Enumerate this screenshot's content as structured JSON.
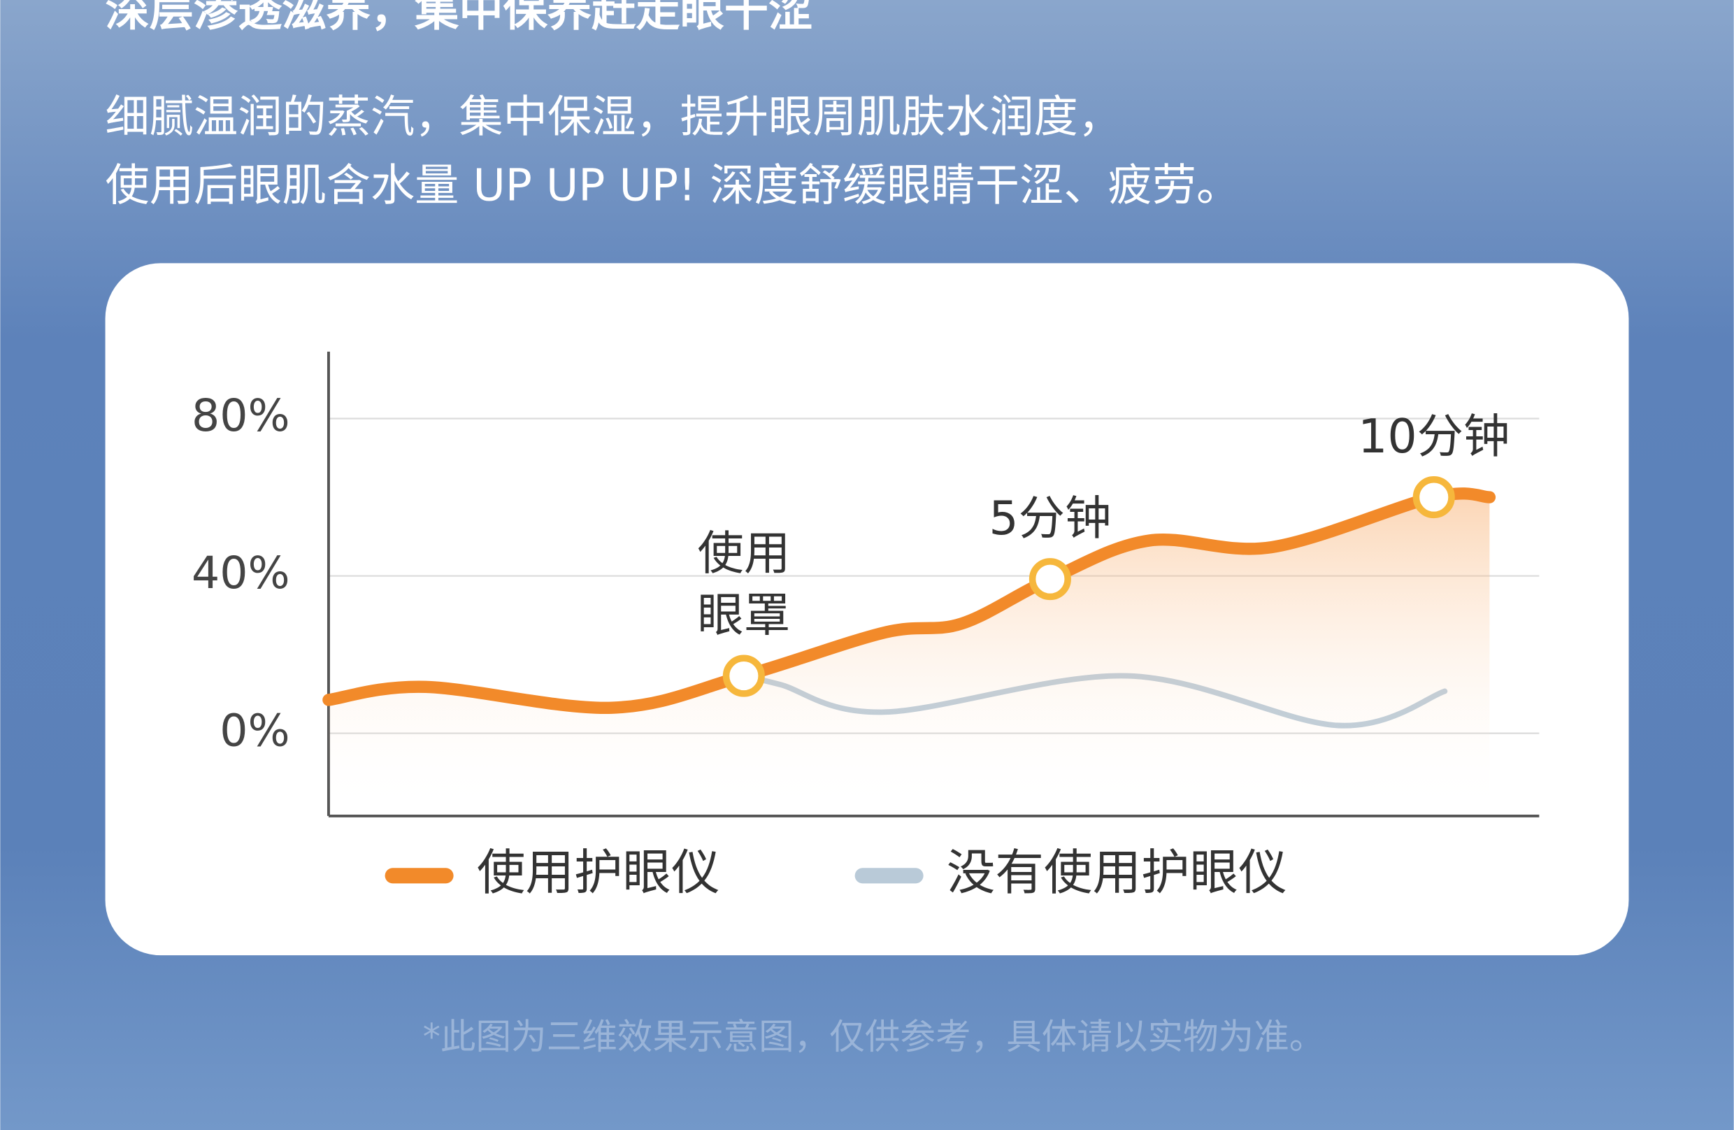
{
  "header": {
    "title": "深层渗透滋养，集中保养赶走眼干涩",
    "lines": [
      "细腻温润的蒸汽，集中保湿，提升眼周肌肤水润度，",
      "使用后眼肌含水量 UP UP UP! 深度舒缓眼睛干涩、疲劳。"
    ]
  },
  "chart_data": {
    "type": "line",
    "xlim": [
      0,
      100
    ],
    "ylim": [
      -21,
      97
    ],
    "yticks": [
      {
        "value": 0,
        "label": "0%"
      },
      {
        "value": 40,
        "label": "40%"
      },
      {
        "value": 80,
        "label": "80%"
      }
    ],
    "grid": true,
    "series": [
      {
        "name": "使用护眼仪",
        "color": "#f28a2a",
        "x": [
          0,
          8,
          23.4,
          34.3,
          45.9,
          52.3,
          59.6,
          67.8,
          77.9,
          91.3,
          95.9
        ],
        "values": [
          8.5,
          11.8,
          6.5,
          14.6,
          25.6,
          27.9,
          39.2,
          49,
          47.3,
          60,
          60
        ]
      },
      {
        "name": "没有使用护眼仪",
        "color": "#b9cad8",
        "x": [
          34.3,
          37.3,
          45.9,
          66,
          83.4,
          92.2
        ],
        "values": [
          14.6,
          12.4,
          5.4,
          14.6,
          2,
          10.7
        ]
      }
    ],
    "annotations": [
      {
        "lines": [
          "使用",
          "眼罩"
        ],
        "x": 34.3,
        "y": 14.6
      },
      {
        "lines": [
          "5分钟"
        ],
        "x": 59.6,
        "y": 39.2
      },
      {
        "lines": [
          "10分钟"
        ],
        "x": 91.3,
        "y": 60
      }
    ]
  },
  "footnote": "*此图为三维效果示意图，仅供参考，具体请以实物为准。"
}
